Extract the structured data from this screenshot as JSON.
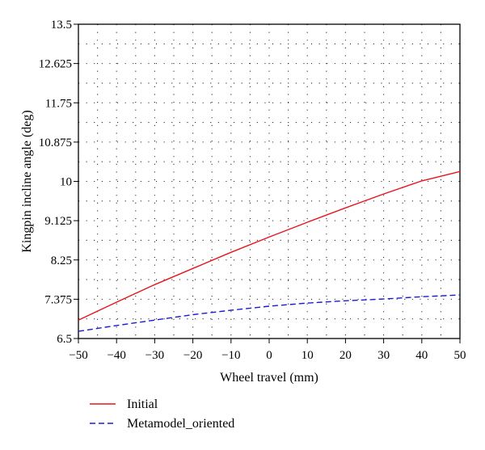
{
  "chart_data": {
    "type": "line",
    "xlabel": "Wheel travel (mm)",
    "ylabel": "Kingpin incline angle (deg)",
    "xlim": [
      -50,
      50
    ],
    "ylim": [
      6.5,
      13.5
    ],
    "x_ticks": [
      -50,
      -40,
      -30,
      -20,
      -10,
      0,
      10,
      20,
      30,
      40,
      50
    ],
    "x_tick_labels": [
      "−50",
      "−40",
      "−30",
      "−20",
      "−10",
      "0",
      "10",
      "20",
      "30",
      "40",
      "50"
    ],
    "y_ticks": [
      6.5,
      7.375,
      8.25,
      9.125,
      10,
      10.875,
      11.75,
      12.625,
      13.5
    ],
    "y_tick_labels": [
      "6.5",
      "7.375",
      "8.25",
      "9.125",
      "10",
      "10.875",
      "11.75",
      "12.625",
      "13.5"
    ],
    "grid": "dotted",
    "legend_position": "bottom-left-outside",
    "series": [
      {
        "name": "Initial",
        "color": "#e8141b",
        "style": "solid",
        "x": [
          -50,
          -40,
          -30,
          -20,
          -10,
          0,
          10,
          20,
          30,
          40,
          50
        ],
        "y": [
          6.91,
          7.31,
          7.7,
          8.06,
          8.42,
          8.76,
          9.09,
          9.41,
          9.72,
          10.01,
          10.22
        ]
      },
      {
        "name": "Metamodel_oriented",
        "color": "#1a1adc",
        "style": "dashed",
        "x": [
          -50,
          -40,
          -30,
          -20,
          -10,
          0,
          10,
          20,
          30,
          40,
          50
        ],
        "y": [
          6.66,
          6.79,
          6.91,
          7.03,
          7.13,
          7.22,
          7.29,
          7.34,
          7.38,
          7.43,
          7.47
        ]
      }
    ]
  }
}
